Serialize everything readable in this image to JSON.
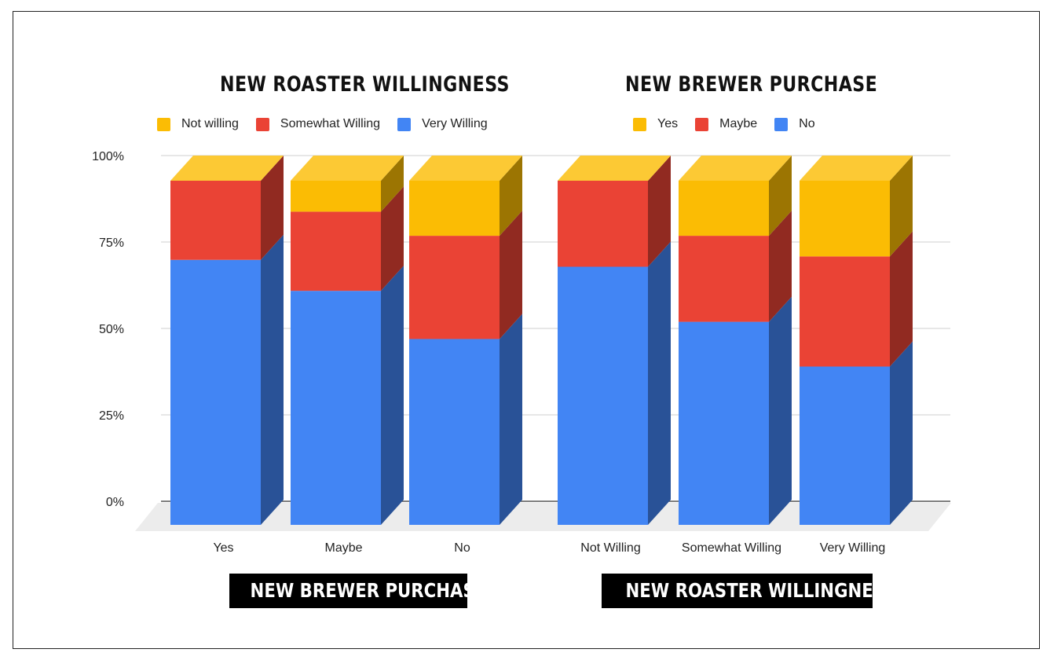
{
  "titles": {
    "left_top": "NEW ROASTER WILLINGNESS",
    "right_top": "NEW BREWER PURCHASE",
    "left_bottom": "NEW BREWER PURCHASE",
    "right_bottom": "NEW ROASTER WILLINGNESS"
  },
  "legends": {
    "left": [
      {
        "label": "Not willing",
        "color": "#FBBC04"
      },
      {
        "label": "Somewhat Willing",
        "color": "#EA4335"
      },
      {
        "label": "Very Willing",
        "color": "#4285F4"
      }
    ],
    "right": [
      {
        "label": "Yes",
        "color": "#FBBC04"
      },
      {
        "label": "Maybe",
        "color": "#EA4335"
      },
      {
        "label": "No",
        "color": "#4285F4"
      }
    ]
  },
  "chart_data": [
    {
      "type": "bar",
      "stacked": true,
      "percent": true,
      "three_d": true,
      "title": "NEW ROASTER WILLINGNESS",
      "xlabel": "NEW BREWER PURCHASE",
      "categories": [
        "Yes",
        "Maybe",
        "No"
      ],
      "yticks": [
        "0%",
        "25%",
        "50%",
        "75%",
        "100%"
      ],
      "ylim": [
        0,
        100
      ],
      "grid": true,
      "legend_position": "top",
      "series": [
        {
          "name": "Very Willing",
          "values": [
            77,
            68,
            54
          ],
          "color": "#4285F4"
        },
        {
          "name": "Somewhat Willing",
          "values": [
            23,
            23,
            30
          ],
          "color": "#EA4335"
        },
        {
          "name": "Not willing",
          "values": [
            0,
            9,
            16
          ],
          "color": "#FBBC04"
        }
      ]
    },
    {
      "type": "bar",
      "stacked": true,
      "percent": true,
      "three_d": true,
      "title": "NEW BREWER PURCHASE",
      "xlabel": "NEW ROASTER WILLINGNESS",
      "categories": [
        "Not Willing",
        "Somewhat Willing",
        "Very Willing"
      ],
      "ylim": [
        0,
        100
      ],
      "grid": true,
      "legend_position": "top",
      "series": [
        {
          "name": "No",
          "values": [
            75,
            59,
            46
          ],
          "color": "#4285F4"
        },
        {
          "name": "Maybe",
          "values": [
            25,
            25,
            32
          ],
          "color": "#EA4335"
        },
        {
          "name": "Yes",
          "values": [
            0,
            16,
            22
          ],
          "color": "#FBBC04"
        }
      ]
    }
  ]
}
